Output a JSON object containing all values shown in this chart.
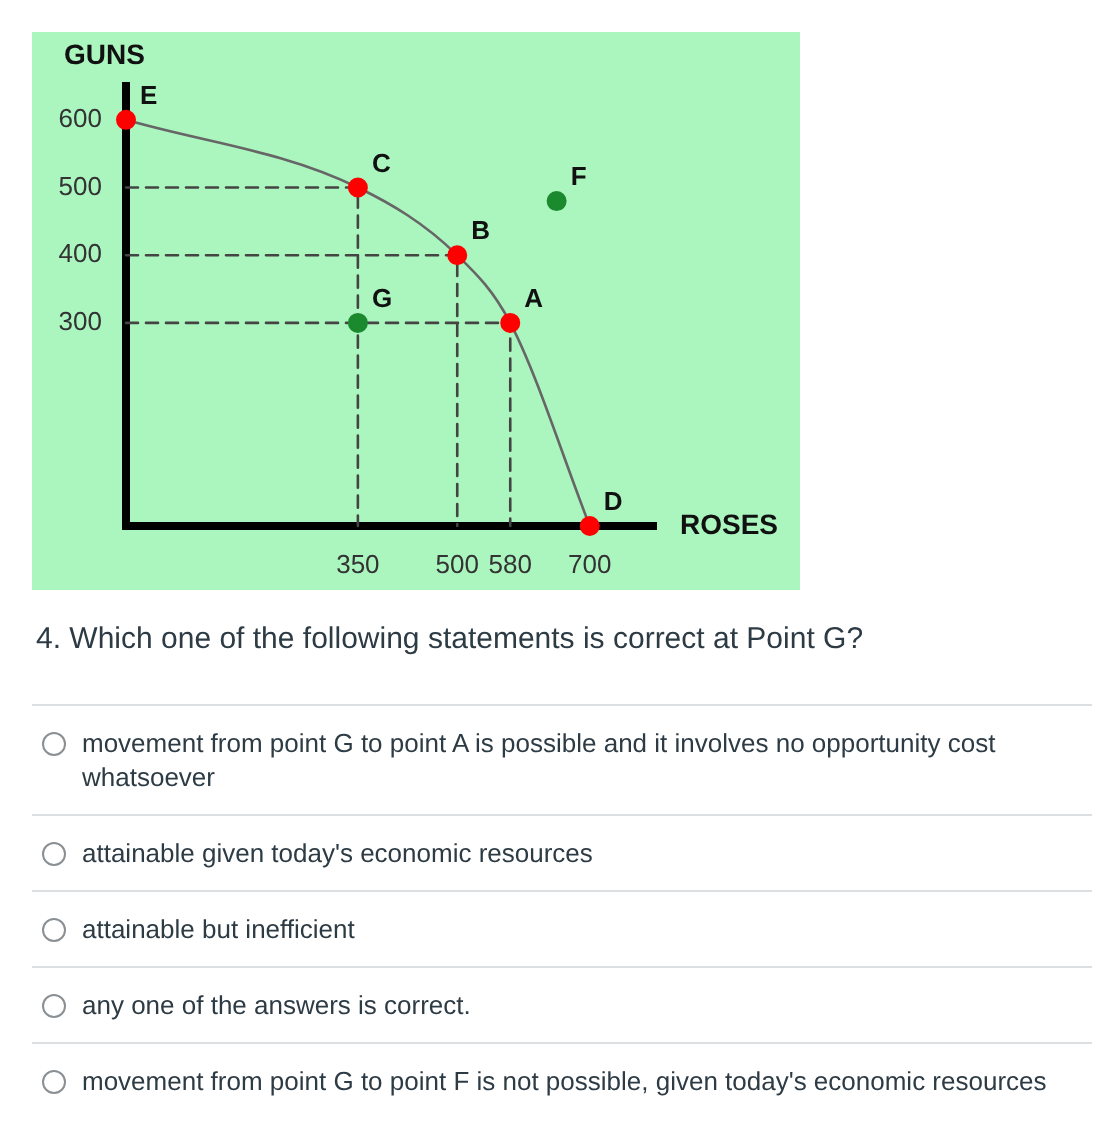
{
  "chart_data": {
    "type": "scatter",
    "xlabel": "ROSES",
    "ylabel": "GUNS",
    "xlim": [
      0,
      800
    ],
    "ylim": [
      0,
      650
    ],
    "xticks": [
      350,
      500,
      580,
      700
    ],
    "yticks": [
      300,
      400,
      500,
      600
    ],
    "grid": false,
    "legend": false,
    "series": [
      {
        "type": "line",
        "color": "#444444",
        "line_style": "dashed",
        "marker": "none",
        "x": [
          0,
          350,
          350
        ],
        "values": [
          500,
          500,
          0
        ]
      },
      {
        "type": "line",
        "color": "#444444",
        "line_style": "dashed",
        "marker": "none",
        "x": [
          0,
          500,
          500
        ],
        "values": [
          400,
          400,
          0
        ]
      },
      {
        "type": "line",
        "color": "#444444",
        "line_style": "dashed",
        "marker": "none",
        "x": [
          0,
          580,
          580
        ],
        "values": [
          300,
          300,
          0
        ]
      },
      {
        "type": "line",
        "color": "#666666",
        "line_style": "solid",
        "marker": "none",
        "x": [
          0,
          350,
          500,
          580,
          700
        ],
        "values": [
          600,
          500,
          400,
          300,
          0
        ]
      },
      {
        "type": "scatter",
        "color": "#ff0000",
        "marker": "circle",
        "x": [
          0,
          350,
          500,
          580,
          700
        ],
        "values": [
          600,
          500,
          400,
          300,
          0
        ]
      },
      {
        "type": "scatter",
        "color": "#1b8a2e",
        "marker": "circle",
        "x": [
          350,
          650
        ],
        "values": [
          300,
          480
        ]
      }
    ],
    "annotations": [
      {
        "text": "E",
        "x": 0,
        "y": 600
      },
      {
        "text": "C",
        "x": 350,
        "y": 500
      },
      {
        "text": "B",
        "x": 500,
        "y": 400
      },
      {
        "text": "A",
        "x": 580,
        "y": 300
      },
      {
        "text": "G",
        "x": 350,
        "y": 300
      },
      {
        "text": "F",
        "x": 650,
        "y": 480
      },
      {
        "text": "D",
        "x": 700,
        "y": 0
      },
      "4. Which one of the following statements is correct at Point G?",
      "movement from point G to point A is possible and it involves no opportunity cost whatsoever",
      "attainable given today's economic resources",
      "attainable but inefficient",
      "any one of the answers is correct.",
      "movement from point G to point F is not possible, given today's economic resources"
    ]
  }
}
